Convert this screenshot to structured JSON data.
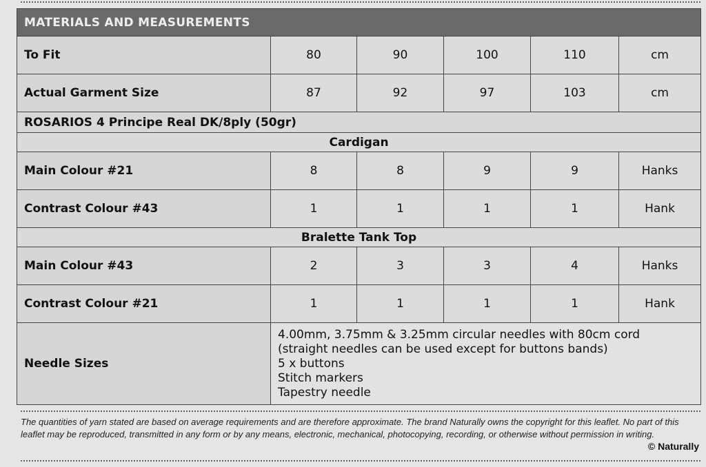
{
  "title": "MATERIALS AND MEASUREMENTS",
  "rows": {
    "to_fit": {
      "label": "To Fit",
      "values": [
        "80",
        "90",
        "100",
        "110"
      ],
      "unit": "cm"
    },
    "actual": {
      "label": "Actual Garment Size",
      "values": [
        "87",
        "92",
        "97",
        "103"
      ],
      "unit": "cm"
    }
  },
  "yarn": "ROSARIOS 4 Principe Real DK/8ply (50gr)",
  "cardigan": {
    "title": "Cardigan",
    "main": {
      "label": "Main Colour #21",
      "values": [
        "8",
        "8",
        "9",
        "9"
      ],
      "unit": "Hanks"
    },
    "contrast": {
      "label": "Contrast Colour #43",
      "values": [
        "1",
        "1",
        "1",
        "1"
      ],
      "unit": "Hank"
    }
  },
  "bralette": {
    "title": "Bralette Tank Top",
    "main": {
      "label": "Main Colour #43",
      "values": [
        "2",
        "3",
        "3",
        "4"
      ],
      "unit": "Hanks"
    },
    "contrast": {
      "label": "Contrast Colour #21",
      "values": [
        "1",
        "1",
        "1",
        "1"
      ],
      "unit": "Hank"
    }
  },
  "needles": {
    "label": "Needle Sizes",
    "lines": [
      "4.00mm, 3.75mm & 3.25mm circular needles with 80cm cord",
      "(straight needles can be used except for buttons bands)",
      "5 x buttons",
      "Stitch markers",
      "Tapestry needle"
    ]
  },
  "footer": {
    "text": "The quantities of yarn stated are based on average requirements and are therefore approximate. The brand Naturally owns the copyright for this leaflet. No part of this leaflet may be reproduced, transmitted in any form or by any means, electronic, mechanical, photocopying, recording, or otherwise without permission in writing.",
    "copyright": "© Naturally"
  }
}
